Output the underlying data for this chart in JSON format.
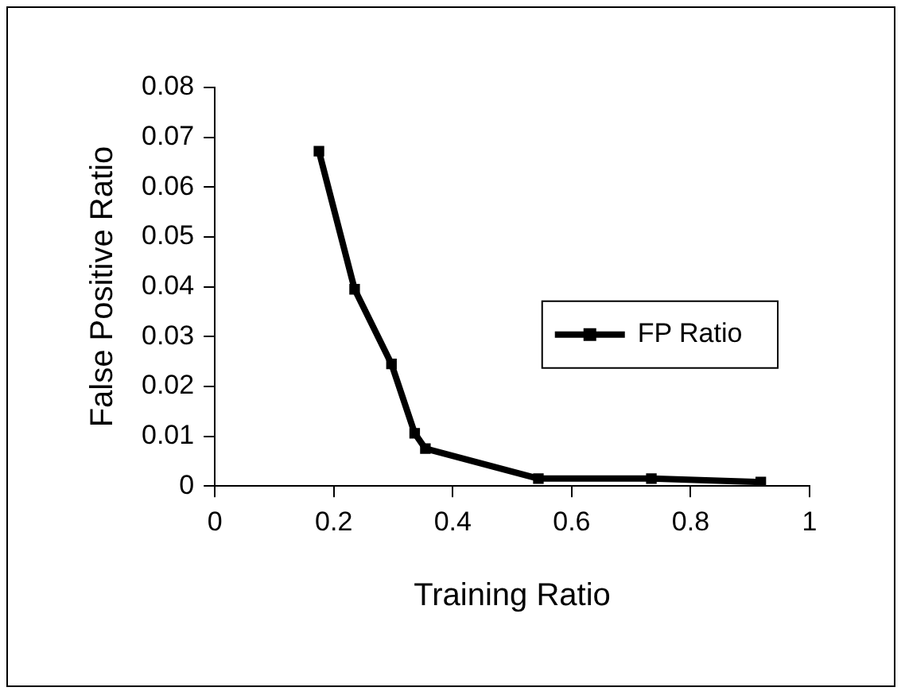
{
  "chart_data": {
    "type": "line",
    "xlabel": "Training Ratio",
    "ylabel": "False Positive Ratio",
    "x": [
      0.175,
      0.235,
      0.297,
      0.336,
      0.354,
      0.544,
      0.734,
      0.918
    ],
    "series": [
      {
        "name": "FP Ratio",
        "color": "#000000",
        "values": [
          0.0672,
          0.0395,
          0.0245,
          0.0106,
          0.0075,
          0.0015,
          0.0015,
          0.0008
        ]
      }
    ],
    "xlim": [
      0,
      1
    ],
    "xticks": [
      0,
      0.2,
      0.4,
      0.6,
      0.8,
      1
    ],
    "ylim": [
      0,
      0.08
    ],
    "yticks": [
      0,
      0.01,
      0.02,
      0.03,
      0.04,
      0.05,
      0.06,
      0.07,
      0.08
    ],
    "grid": false,
    "legend": "right",
    "marker": "square",
    "line_style": "solid"
  }
}
